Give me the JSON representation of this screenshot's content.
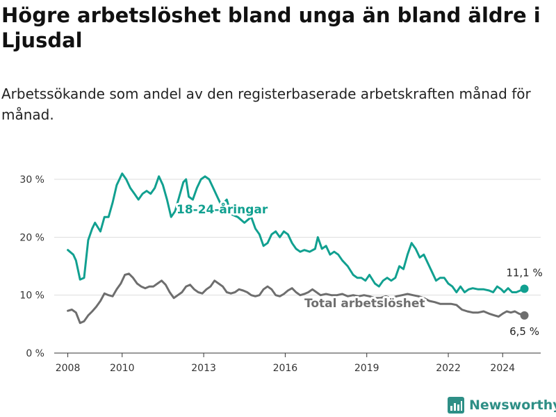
{
  "header": {
    "title": "Högre arbetslöshet bland unga än bland äldre i Ljusdal",
    "subtitle": "Arbetssökande som andel av den registerbaserade arbetskraften månad för månad."
  },
  "brand": {
    "name": "Newsworthy",
    "icon": "newsworthy-chart-logo",
    "color": "#2e8f86"
  },
  "chart_data": {
    "type": "line",
    "title": "Högre arbetslöshet bland unga än bland äldre i Ljusdal",
    "subtitle": "Arbetssökande som andel av den registerbaserade arbetskraften månad för månad.",
    "xlabel": "",
    "ylabel": "",
    "xlim": [
      2007.5,
      2025.4
    ],
    "ylim": [
      0,
      32
    ],
    "grid": true,
    "legend": "inline labels",
    "x_ticks": [
      2008,
      2010,
      2013,
      2016,
      2019,
      2022,
      2024
    ],
    "x_tick_labels": [
      "2008",
      "2010",
      "2013",
      "2016",
      "2019",
      "2022",
      "2024"
    ],
    "y_ticks": [
      0,
      10,
      20,
      30
    ],
    "y_tick_labels": [
      "0 %",
      "10 %",
      "20 %",
      "30 %"
    ],
    "series": [
      {
        "name": "18-24-åringar",
        "color": "#11a090",
        "end_label": "11,1 %",
        "points": [
          [
            2008.0,
            17.8
          ],
          [
            2008.2,
            17.0
          ],
          [
            2008.3,
            16.0
          ],
          [
            2008.45,
            12.7
          ],
          [
            2008.6,
            13.0
          ],
          [
            2008.75,
            19.5
          ],
          [
            2008.9,
            21.5
          ],
          [
            2009.0,
            22.5
          ],
          [
            2009.2,
            21.0
          ],
          [
            2009.35,
            23.5
          ],
          [
            2009.5,
            23.5
          ],
          [
            2009.65,
            26.0
          ],
          [
            2009.8,
            29.0
          ],
          [
            2010.0,
            31.0
          ],
          [
            2010.15,
            30.0
          ],
          [
            2010.3,
            28.5
          ],
          [
            2010.45,
            27.5
          ],
          [
            2010.6,
            26.5
          ],
          [
            2010.75,
            27.5
          ],
          [
            2010.9,
            28.0
          ],
          [
            2011.05,
            27.5
          ],
          [
            2011.2,
            28.5
          ],
          [
            2011.35,
            30.5
          ],
          [
            2011.5,
            29.0
          ],
          [
            2011.65,
            26.5
          ],
          [
            2011.8,
            23.5
          ],
          [
            2011.95,
            24.5
          ],
          [
            2012.1,
            27.0
          ],
          [
            2012.25,
            29.5
          ],
          [
            2012.35,
            30.0
          ],
          [
            2012.45,
            27.0
          ],
          [
            2012.6,
            26.5
          ],
          [
            2012.75,
            28.5
          ],
          [
            2012.9,
            30.0
          ],
          [
            2013.05,
            30.5
          ],
          [
            2013.2,
            30.0
          ],
          [
            2013.35,
            28.5
          ],
          [
            2013.5,
            27.0
          ],
          [
            2013.65,
            25.5
          ],
          [
            2013.85,
            26.5
          ],
          [
            2014.0,
            24.0
          ],
          [
            2014.25,
            23.5
          ],
          [
            2014.5,
            22.5
          ],
          [
            2014.75,
            23.5
          ],
          [
            2014.9,
            21.5
          ],
          [
            2015.05,
            20.5
          ],
          [
            2015.2,
            18.5
          ],
          [
            2015.35,
            19.0
          ],
          [
            2015.5,
            20.5
          ],
          [
            2015.65,
            21.0
          ],
          [
            2015.8,
            20.0
          ],
          [
            2015.95,
            21.0
          ],
          [
            2016.1,
            20.5
          ],
          [
            2016.25,
            19.0
          ],
          [
            2016.4,
            18.0
          ],
          [
            2016.55,
            17.5
          ],
          [
            2016.7,
            17.8
          ],
          [
            2016.9,
            17.5
          ],
          [
            2017.1,
            18.0
          ],
          [
            2017.2,
            20.0
          ],
          [
            2017.35,
            18.0
          ],
          [
            2017.5,
            18.5
          ],
          [
            2017.65,
            17.0
          ],
          [
            2017.8,
            17.5
          ],
          [
            2017.95,
            17.0
          ],
          [
            2018.1,
            16.0
          ],
          [
            2018.3,
            15.0
          ],
          [
            2018.5,
            13.5
          ],
          [
            2018.65,
            13.0
          ],
          [
            2018.8,
            13.0
          ],
          [
            2018.95,
            12.5
          ],
          [
            2019.1,
            13.5
          ],
          [
            2019.3,
            12.0
          ],
          [
            2019.45,
            11.5
          ],
          [
            2019.6,
            12.5
          ],
          [
            2019.75,
            13.0
          ],
          [
            2019.9,
            12.5
          ],
          [
            2020.05,
            13.0
          ],
          [
            2020.2,
            15.0
          ],
          [
            2020.35,
            14.5
          ],
          [
            2020.5,
            17.0
          ],
          [
            2020.65,
            19.0
          ],
          [
            2020.8,
            18.0
          ],
          [
            2020.95,
            16.5
          ],
          [
            2021.1,
            17.0
          ],
          [
            2021.25,
            15.5
          ],
          [
            2021.4,
            14.0
          ],
          [
            2021.55,
            12.5
          ],
          [
            2021.7,
            13.0
          ],
          [
            2021.85,
            13.0
          ],
          [
            2022.0,
            12.0
          ],
          [
            2022.15,
            11.5
          ],
          [
            2022.3,
            10.5
          ],
          [
            2022.45,
            11.5
          ],
          [
            2022.6,
            10.5
          ],
          [
            2022.75,
            11.0
          ],
          [
            2022.9,
            11.2
          ],
          [
            2023.1,
            11.0
          ],
          [
            2023.3,
            11.0
          ],
          [
            2023.5,
            10.8
          ],
          [
            2023.65,
            10.5
          ],
          [
            2023.8,
            11.5
          ],
          [
            2023.95,
            11.0
          ],
          [
            2024.05,
            10.5
          ],
          [
            2024.2,
            11.2
          ],
          [
            2024.35,
            10.5
          ],
          [
            2024.5,
            10.5
          ],
          [
            2024.65,
            10.8
          ],
          [
            2024.8,
            11.1
          ]
        ]
      },
      {
        "name": "Total arbetslöshet",
        "color": "#6e6e6e",
        "end_label": "6,5 %",
        "points": [
          [
            2008.0,
            7.3
          ],
          [
            2008.15,
            7.5
          ],
          [
            2008.3,
            7.0
          ],
          [
            2008.45,
            5.2
          ],
          [
            2008.6,
            5.5
          ],
          [
            2008.75,
            6.5
          ],
          [
            2008.9,
            7.2
          ],
          [
            2009.05,
            8.0
          ],
          [
            2009.2,
            9.0
          ],
          [
            2009.35,
            10.3
          ],
          [
            2009.5,
            10.0
          ],
          [
            2009.65,
            9.8
          ],
          [
            2009.8,
            11.0
          ],
          [
            2009.95,
            12.0
          ],
          [
            2010.1,
            13.5
          ],
          [
            2010.25,
            13.7
          ],
          [
            2010.4,
            13.0
          ],
          [
            2010.55,
            12.0
          ],
          [
            2010.7,
            11.5
          ],
          [
            2010.85,
            11.2
          ],
          [
            2011.0,
            11.5
          ],
          [
            2011.15,
            11.5
          ],
          [
            2011.3,
            12.0
          ],
          [
            2011.45,
            12.5
          ],
          [
            2011.6,
            11.8
          ],
          [
            2011.75,
            10.5
          ],
          [
            2011.9,
            9.5
          ],
          [
            2012.05,
            10.0
          ],
          [
            2012.2,
            10.5
          ],
          [
            2012.35,
            11.5
          ],
          [
            2012.5,
            11.8
          ],
          [
            2012.65,
            11.0
          ],
          [
            2012.8,
            10.5
          ],
          [
            2012.95,
            10.3
          ],
          [
            2013.1,
            11.0
          ],
          [
            2013.25,
            11.5
          ],
          [
            2013.4,
            12.5
          ],
          [
            2013.55,
            12.0
          ],
          [
            2013.7,
            11.5
          ],
          [
            2013.85,
            10.5
          ],
          [
            2014.0,
            10.3
          ],
          [
            2014.15,
            10.5
          ],
          [
            2014.3,
            11.0
          ],
          [
            2014.45,
            10.8
          ],
          [
            2014.6,
            10.5
          ],
          [
            2014.75,
            10.0
          ],
          [
            2014.9,
            9.8
          ],
          [
            2015.05,
            10.0
          ],
          [
            2015.2,
            11.0
          ],
          [
            2015.35,
            11.5
          ],
          [
            2015.5,
            11.0
          ],
          [
            2015.65,
            10.0
          ],
          [
            2015.8,
            9.8
          ],
          [
            2015.95,
            10.2
          ],
          [
            2016.1,
            10.8
          ],
          [
            2016.25,
            11.2
          ],
          [
            2016.4,
            10.5
          ],
          [
            2016.55,
            10.0
          ],
          [
            2016.7,
            10.2
          ],
          [
            2016.85,
            10.5
          ],
          [
            2017.0,
            11.0
          ],
          [
            2017.15,
            10.5
          ],
          [
            2017.3,
            10.0
          ],
          [
            2017.5,
            10.2
          ],
          [
            2017.7,
            10.0
          ],
          [
            2017.9,
            10.0
          ],
          [
            2018.1,
            10.2
          ],
          [
            2018.3,
            9.8
          ],
          [
            2018.5,
            10.0
          ],
          [
            2018.7,
            9.8
          ],
          [
            2018.9,
            10.0
          ],
          [
            2019.1,
            9.8
          ],
          [
            2019.3,
            9.5
          ],
          [
            2019.5,
            9.5
          ],
          [
            2019.7,
            9.8
          ],
          [
            2019.9,
            9.5
          ],
          [
            2020.1,
            9.8
          ],
          [
            2020.3,
            10.0
          ],
          [
            2020.5,
            10.2
          ],
          [
            2020.7,
            10.0
          ],
          [
            2020.9,
            9.8
          ],
          [
            2021.1,
            9.5
          ],
          [
            2021.3,
            9.0
          ],
          [
            2021.5,
            8.8
          ],
          [
            2021.7,
            8.5
          ],
          [
            2021.9,
            8.5
          ],
          [
            2022.1,
            8.5
          ],
          [
            2022.3,
            8.3
          ],
          [
            2022.5,
            7.5
          ],
          [
            2022.7,
            7.2
          ],
          [
            2022.9,
            7.0
          ],
          [
            2023.1,
            7.0
          ],
          [
            2023.3,
            7.2
          ],
          [
            2023.5,
            6.8
          ],
          [
            2023.7,
            6.5
          ],
          [
            2023.85,
            6.3
          ],
          [
            2024.0,
            6.8
          ],
          [
            2024.15,
            7.2
          ],
          [
            2024.3,
            7.0
          ],
          [
            2024.45,
            7.2
          ],
          [
            2024.6,
            6.8
          ],
          [
            2024.8,
            6.5
          ]
        ]
      }
    ]
  }
}
